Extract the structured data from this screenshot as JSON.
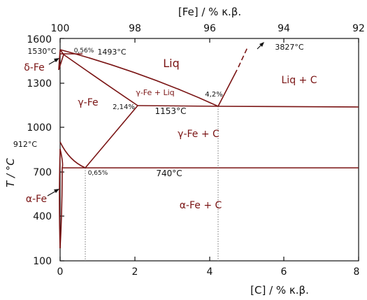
{
  "diagram": {
    "top_axis_title": "[Fe] / % κ.β.",
    "bottom_axis_title": "[C] / % κ.β.",
    "y_axis_title": "T / °C",
    "top_ticks": [
      "100",
      "98",
      "96",
      "94",
      "92"
    ],
    "bottom_ticks": [
      "0",
      "2",
      "4",
      "6",
      "8"
    ],
    "left_ticks": [
      "100",
      "400",
      "700",
      "1000",
      "1300",
      "1600"
    ],
    "phases": {
      "liq": "Liq",
      "liq_c": "Liq + C",
      "gamma_fe": "γ-Fe",
      "gamma_fe_liq": "γ-Fe + Liq",
      "gamma_fe_c": "γ-Fe + C",
      "alpha_fe_c": "α-Fe + C",
      "delta_fe": "δ-Fe",
      "alpha_fe": "α-Fe"
    },
    "annotations": {
      "t_1530": "1530°C",
      "c_056": "0,56%",
      "t_1493": "1493°C",
      "t_3827": "3827°C",
      "c_42": "4,2%",
      "c_214": "2,14%",
      "t_1153": "1153°C",
      "t_912": "912°C",
      "c_065": "0,65%",
      "t_740": "740°C"
    },
    "colors": {
      "curve": "#7a1414",
      "frame": "#111111"
    }
  }
}
